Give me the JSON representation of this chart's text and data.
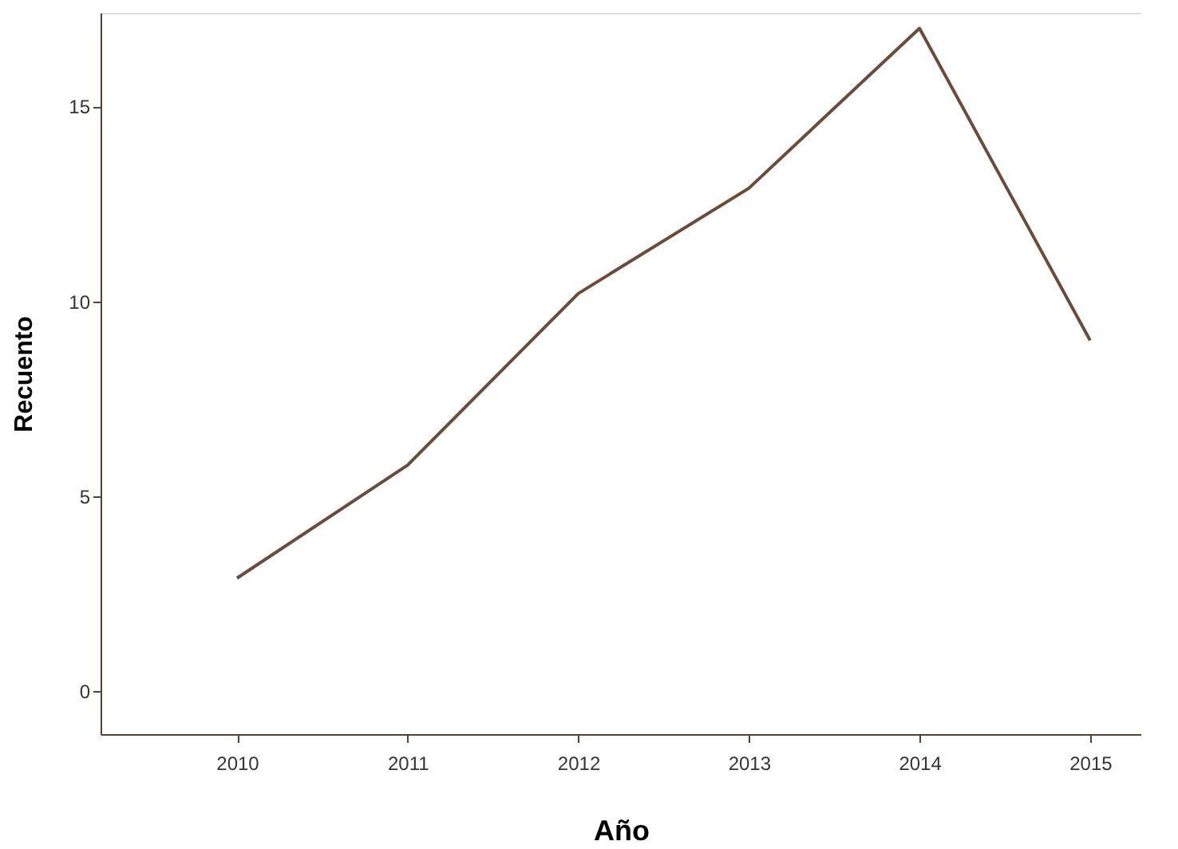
{
  "chart_data": {
    "type": "line",
    "xlabel": "Año",
    "ylabel": "Recuento",
    "x": [
      2010,
      2011,
      2012,
      2013,
      2014,
      2015
    ],
    "series": [
      {
        "color": "#6b4c3b",
        "values": [
          2.9,
          5.8,
          10.2,
          12.9,
          17.0,
          9.0
        ]
      }
    ],
    "xlim": [
      2009.2,
      2015.3
    ],
    "xticks": [
      2010,
      2011,
      2012,
      2013,
      2014,
      2015
    ],
    "ylim": [
      -1.1,
      17.4
    ],
    "yticks": [
      0,
      5,
      10,
      15
    ],
    "grid": false,
    "marker": "none",
    "line_style": "solid"
  }
}
